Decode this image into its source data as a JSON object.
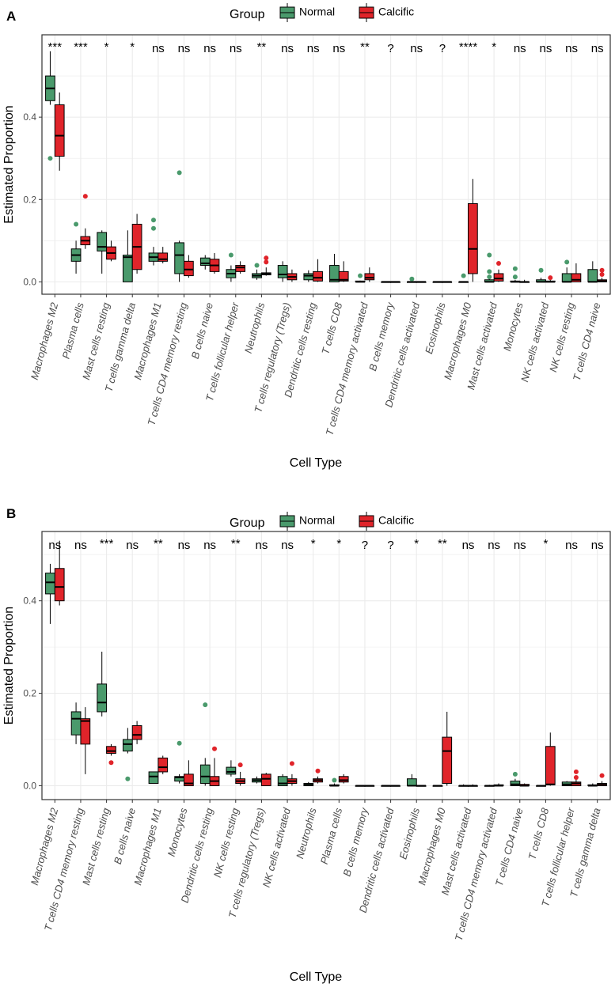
{
  "colors": {
    "normal": "#4a9a6c",
    "calcific": "#e0242a",
    "grid": "#ebebeb",
    "border": "#333333"
  },
  "chart_data": [
    {
      "panel": "A",
      "type": "boxplot",
      "xlabel": "Cell Type",
      "ylabel": "Estimated Proportion",
      "ylim": [
        -0.03,
        0.6
      ],
      "yticks": [
        "0.0",
        "0.2",
        "0.4"
      ],
      "legend": {
        "title": "Group",
        "entries": [
          "Normal",
          "Calcific"
        ],
        "placement": "top-center"
      },
      "categories": [
        "Macrophages M2",
        "Plasma cells",
        "Mast cells resting",
        "T cells gamma delta",
        "Macrophages M1",
        "T cells CD4 memory resting",
        "B cells naive",
        "T cells follicular helper",
        "Neutrophils",
        "T cells regulatory (Tregs)",
        "Dendritic cells resting",
        "T cells CD8",
        "T cells CD4 memory activated",
        "B cells memory",
        "Dendritic cells activated",
        "Eosinophils",
        "Macrophages M0",
        "Mast cells activated",
        "Monocytes",
        "NK cells activated",
        "NK cells resting",
        "T cells CD4 naive"
      ],
      "significance": [
        "***",
        "***",
        "*",
        "*",
        "ns",
        "ns",
        "ns",
        "ns",
        "**",
        "ns",
        "ns",
        "ns",
        "**",
        "?",
        "ns",
        "?",
        "****",
        "*",
        "ns",
        "ns",
        "ns",
        "ns"
      ],
      "series": [
        {
          "name": "Normal",
          "boxes": [
            [
              0.43,
              0.44,
              0.47,
              0.5,
              0.56,
              [
                0.3
              ]
            ],
            [
              0.02,
              0.05,
              0.065,
              0.08,
              0.1,
              [
                0.14
              ]
            ],
            [
              0.02,
              0.075,
              0.085,
              0.12,
              0.125,
              []
            ],
            [
              0.0,
              0.0,
              0.06,
              0.065,
              0.125,
              []
            ],
            [
              0.04,
              0.05,
              0.06,
              0.07,
              0.085,
              [
                0.15,
                0.13
              ]
            ],
            [
              0.0,
              0.02,
              0.065,
              0.095,
              0.1,
              [
                0.265
              ]
            ],
            [
              0.03,
              0.04,
              0.045,
              0.058,
              0.065,
              []
            ],
            [
              0.0,
              0.01,
              0.02,
              0.03,
              0.04,
              [
                0.065
              ]
            ],
            [
              0.005,
              0.01,
              0.015,
              0.02,
              0.03,
              [
                0.04
              ]
            ],
            [
              0.0,
              0.01,
              0.018,
              0.04,
              0.05,
              []
            ],
            [
              0.0,
              0.005,
              0.015,
              0.02,
              0.028,
              []
            ],
            [
              0.0,
              0.0,
              0.005,
              0.04,
              0.068,
              []
            ],
            [
              0.0,
              0.0,
              0.0,
              0.002,
              0.003,
              [
                0.015
              ]
            ],
            [
              0.0,
              0.0,
              0.0,
              0.0,
              0.0,
              []
            ],
            [
              0.0,
              0.0,
              0.0,
              0.0,
              0.0,
              [
                0.007
              ]
            ],
            [
              0.0,
              0.0,
              0.0,
              0.0,
              0.0,
              []
            ],
            [
              0.0,
              0.0,
              0.0,
              0.0,
              0.0,
              [
                0.015
              ]
            ],
            [
              0.0,
              0.0,
              0.0,
              0.005,
              0.01,
              [
                0.065,
                0.025,
                0.012
              ]
            ],
            [
              0.0,
              0.0,
              0.0,
              0.002,
              0.005,
              [
                0.032,
                0.012
              ]
            ],
            [
              0.0,
              0.0,
              0.0,
              0.005,
              0.01,
              [
                0.028
              ]
            ],
            [
              0.0,
              0.0,
              0.0,
              0.02,
              0.035,
              [
                0.048
              ]
            ],
            [
              0.0,
              0.0,
              0.0,
              0.03,
              0.05,
              []
            ]
          ]
        },
        {
          "name": "Calcific",
          "boxes": [
            [
              0.27,
              0.305,
              0.355,
              0.43,
              0.46,
              []
            ],
            [
              0.08,
              0.09,
              0.1,
              0.11,
              0.13,
              [
                0.208
              ]
            ],
            [
              0.05,
              0.055,
              0.07,
              0.085,
              0.1,
              []
            ],
            [
              0.02,
              0.03,
              0.085,
              0.14,
              0.165,
              []
            ],
            [
              0.045,
              0.05,
              0.055,
              0.07,
              0.085,
              []
            ],
            [
              0.01,
              0.015,
              0.03,
              0.05,
              0.065,
              []
            ],
            [
              0.02,
              0.025,
              0.04,
              0.055,
              0.07,
              []
            ],
            [
              0.02,
              0.025,
              0.035,
              0.04,
              0.05,
              []
            ],
            [
              0.015,
              0.017,
              0.02,
              0.022,
              0.035,
              [
                0.058,
                0.048
              ]
            ],
            [
              0.0,
              0.005,
              0.012,
              0.02,
              0.03,
              []
            ],
            [
              0.0,
              0.002,
              0.01,
              0.025,
              0.055,
              []
            ],
            [
              0.0,
              0.002,
              0.005,
              0.025,
              0.05,
              []
            ],
            [
              0.0,
              0.005,
              0.01,
              0.02,
              0.035,
              []
            ],
            [
              0.0,
              0.0,
              0.0,
              0.0,
              0.0,
              []
            ],
            [
              0.0,
              0.0,
              0.0,
              0.0,
              0.0,
              []
            ],
            [
              0.0,
              0.0,
              0.0,
              0.0,
              0.0,
              []
            ],
            [
              0.0,
              0.02,
              0.08,
              0.19,
              0.25,
              []
            ],
            [
              0.0,
              0.002,
              0.008,
              0.02,
              0.03,
              [
                0.045
              ]
            ],
            [
              0.0,
              0.0,
              0.0,
              0.0,
              0.005,
              []
            ],
            [
              0.0,
              0.0,
              0.0,
              0.002,
              0.005,
              [
                0.01
              ]
            ],
            [
              0.0,
              0.0,
              0.005,
              0.02,
              0.045,
              []
            ],
            [
              0.0,
              0.0,
              0.002,
              0.005,
              0.01,
              [
                0.028,
                0.018
              ]
            ]
          ]
        }
      ]
    },
    {
      "panel": "B",
      "type": "boxplot",
      "xlabel": "Cell Type",
      "ylabel": "Estimated Proportion",
      "ylim": [
        -0.03,
        0.55
      ],
      "yticks": [
        "0.0",
        "0.2",
        "0.4"
      ],
      "legend": {
        "title": "Group",
        "entries": [
          "Normal",
          "Calcific"
        ],
        "placement": "top-center"
      },
      "categories": [
        "Macrophages M2",
        "T cells CD4 memory resting",
        "Mast cells resting",
        "B cells naive",
        "Macrophages M1",
        "Monocytes",
        "Dendritic cells resting",
        "NK cells resting",
        "T cells regulatory (Tregs)",
        "NK cells activated",
        "Neutrophils",
        "Plasma cells",
        "B cells memory",
        "Dendritic cells activated",
        "Eosinophils",
        "Macrophages M0",
        "Mast cells activated",
        "T cells CD4 memory activated",
        "T cells CD4 naive",
        "T cells CD8",
        "T cells follicular helper",
        "T cells gamma delta"
      ],
      "significance": [
        "ns",
        "ns",
        "***",
        "ns",
        "**",
        "ns",
        "ns",
        "**",
        "ns",
        "ns",
        "*",
        "*",
        "?",
        "?",
        "*",
        "**",
        "ns",
        "ns",
        "ns",
        "*",
        "ns",
        "ns"
      ],
      "series": [
        {
          "name": "Normal",
          "boxes": [
            [
              0.35,
              0.415,
              0.44,
              0.46,
              0.48,
              []
            ],
            [
              0.09,
              0.11,
              0.145,
              0.16,
              0.18,
              []
            ],
            [
              0.15,
              0.16,
              0.18,
              0.22,
              0.29,
              []
            ],
            [
              0.07,
              0.075,
              0.09,
              0.1,
              0.125,
              [
                0.015
              ]
            ],
            [
              0.005,
              0.005,
              0.02,
              0.03,
              0.03,
              []
            ],
            [
              0.005,
              0.01,
              0.018,
              0.02,
              0.025,
              [
                0.092
              ]
            ],
            [
              0.0,
              0.005,
              0.02,
              0.045,
              0.06,
              [
                0.175
              ]
            ],
            [
              0.02,
              0.025,
              0.03,
              0.04,
              0.055,
              []
            ],
            [
              0.005,
              0.008,
              0.012,
              0.015,
              0.02,
              []
            ],
            [
              0.0,
              0.0,
              0.005,
              0.02,
              0.025,
              []
            ],
            [
              0.0,
              0.0,
              0.003,
              0.005,
              0.008,
              []
            ],
            [
              0.0,
              0.0,
              0.0,
              0.002,
              0.005,
              [
                0.012
              ]
            ],
            [
              0.0,
              0.0,
              0.0,
              0.0,
              0.0,
              []
            ],
            [
              0.0,
              0.0,
              0.0,
              0.0,
              0.0,
              []
            ],
            [
              0.0,
              0.0,
              0.0,
              0.015,
              0.025,
              []
            ],
            [
              0.0,
              0.0,
              0.0,
              0.0,
              0.0,
              []
            ],
            [
              0.0,
              0.0,
              0.0,
              0.0,
              0.003,
              []
            ],
            [
              0.0,
              0.0,
              0.0,
              0.0,
              0.002,
              []
            ],
            [
              0.0,
              0.0,
              0.003,
              0.01,
              0.015,
              [
                0.025
              ]
            ],
            [
              0.0,
              0.0,
              0.0,
              0.0,
              0.0,
              []
            ],
            [
              0.0,
              0.0,
              0.003,
              0.008,
              0.01,
              []
            ],
            [
              0.0,
              0.0,
              0.0,
              0.002,
              0.005,
              []
            ]
          ]
        },
        {
          "name": "Calcific",
          "boxes": [
            [
              0.39,
              0.4,
              0.43,
              0.47,
              0.53,
              []
            ],
            [
              0.025,
              0.09,
              0.14,
              0.145,
              0.17,
              []
            ],
            [
              0.065,
              0.07,
              0.075,
              0.085,
              0.09,
              [
                0.05
              ]
            ],
            [
              0.09,
              0.1,
              0.11,
              0.13,
              0.14,
              []
            ],
            [
              0.025,
              0.03,
              0.04,
              0.06,
              0.065,
              []
            ],
            [
              0.0,
              0.0,
              0.005,
              0.025,
              0.055,
              []
            ],
            [
              0.0,
              0.0,
              0.01,
              0.02,
              0.06,
              [
                0.08
              ]
            ],
            [
              0.0,
              0.005,
              0.01,
              0.015,
              0.03,
              [
                0.045
              ]
            ],
            [
              0.0,
              0.0,
              0.015,
              0.025,
              0.028,
              []
            ],
            [
              0.0,
              0.005,
              0.01,
              0.015,
              0.025,
              [
                0.048
              ]
            ],
            [
              0.005,
              0.008,
              0.012,
              0.015,
              0.02,
              [
                0.032
              ]
            ],
            [
              0.005,
              0.008,
              0.012,
              0.02,
              0.025,
              []
            ],
            [
              0.0,
              0.0,
              0.0,
              0.0,
              0.0,
              []
            ],
            [
              0.0,
              0.0,
              0.0,
              0.0,
              0.0,
              []
            ],
            [
              0.0,
              0.0,
              0.0,
              0.0,
              0.0,
              []
            ],
            [
              0.0,
              0.005,
              0.075,
              0.105,
              0.16,
              []
            ],
            [
              0.0,
              0.0,
              0.0,
              0.0,
              0.003,
              []
            ],
            [
              0.0,
              0.0,
              0.0,
              0.002,
              0.005,
              []
            ],
            [
              0.0,
              0.0,
              0.0,
              0.003,
              0.005,
              []
            ],
            [
              0.0,
              0.002,
              0.003,
              0.085,
              0.115,
              []
            ],
            [
              0.0,
              0.0,
              0.005,
              0.008,
              0.015,
              [
                0.03,
                0.018
              ]
            ],
            [
              0.0,
              0.0,
              0.003,
              0.005,
              0.01,
              [
                0.022
              ]
            ]
          ]
        }
      ]
    }
  ]
}
